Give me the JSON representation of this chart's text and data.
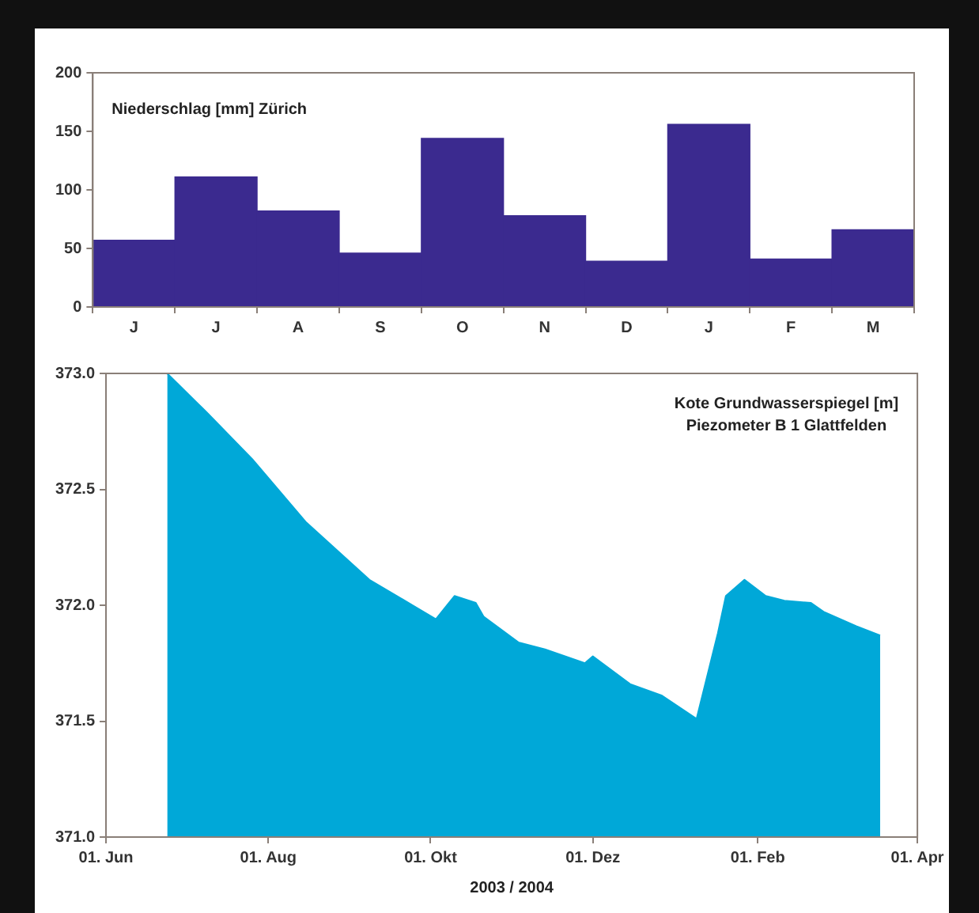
{
  "chart_data": [
    {
      "type": "bar",
      "title": "Niederschlag [mm] Zürich",
      "categories": [
        "J",
        "J",
        "A",
        "S",
        "O",
        "N",
        "D",
        "J",
        "F",
        "M"
      ],
      "values": [
        57,
        111,
        82,
        46,
        144,
        78,
        39,
        156,
        41,
        66
      ],
      "color": "#3b2a8f",
      "ylim": [
        0,
        200
      ],
      "yticks": [
        0,
        50,
        100,
        150,
        200
      ],
      "grid": false
    },
    {
      "type": "area",
      "title": "Kote Grundwasserspiegel [m]",
      "subtitle": "Piezometer B 1 Glattfelden",
      "xlabel": "2003 / 2004",
      "x": [
        "2003-06-24",
        "2003-07-09",
        "2003-07-26",
        "2003-08-15",
        "2003-09-08",
        "2003-10-03",
        "2003-10-10",
        "2003-10-18",
        "2003-10-21",
        "2003-11-03",
        "2003-11-13",
        "2003-11-28",
        "2003-12-01",
        "2003-12-15",
        "2003-12-27",
        "2004-01-09",
        "2004-01-17",
        "2004-01-20",
        "2004-01-27",
        "2004-02-04",
        "2004-02-11",
        "2004-02-21",
        "2004-02-26",
        "2004-03-09",
        "2004-03-18"
      ],
      "values": [
        373.0,
        372.83,
        372.63,
        372.36,
        372.11,
        371.94,
        372.04,
        372.01,
        371.95,
        371.84,
        371.81,
        371.75,
        371.78,
        371.66,
        371.61,
        371.51,
        371.88,
        372.04,
        372.11,
        372.04,
        372.02,
        372.01,
        371.97,
        371.91,
        371.87
      ],
      "color": "#00a8d8",
      "xlim": [
        "2003-06-01",
        "2004-04-01"
      ],
      "xticks": [
        {
          "value": "2003-06-01",
          "label": "01. Jun"
        },
        {
          "value": "2003-08-01",
          "label": "01. Aug"
        },
        {
          "value": "2003-10-01",
          "label": "01. Okt"
        },
        {
          "value": "2003-12-01",
          "label": "01. Dez"
        },
        {
          "value": "2004-02-01",
          "label": "01. Feb"
        },
        {
          "value": "2004-04-01",
          "label": "01. Apr"
        }
      ],
      "ylim": [
        371.0,
        373.0
      ],
      "yticks": [
        {
          "value": 371.0,
          "label": "371.0"
        },
        {
          "value": 371.5,
          "label": "371.5"
        },
        {
          "value": 372.0,
          "label": "372.0"
        },
        {
          "value": 372.5,
          "label": "372.5"
        },
        {
          "value": 373.0,
          "label": "373.0"
        }
      ],
      "grid": false
    }
  ]
}
